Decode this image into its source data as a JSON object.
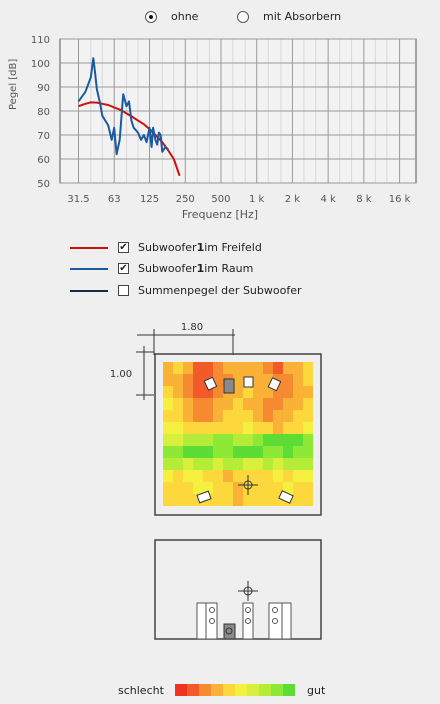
{
  "mode": {
    "options": [
      {
        "label": "ohne",
        "selected": true
      },
      {
        "label": "mit Absorbern",
        "selected": false
      }
    ]
  },
  "chart_data": {
    "type": "line",
    "ylabel": "Pegel [dB]",
    "xlabel": "Frequenz [Hz]",
    "x_ticks": [
      "31.5",
      "63",
      "125",
      "250",
      "500",
      "1 k",
      "2 k",
      "4 k",
      "8 k",
      "16 k"
    ],
    "y_ticks": [
      "110",
      "100",
      "90",
      "80",
      "70",
      "60",
      "50"
    ],
    "ylim": [
      50,
      110
    ],
    "xlim_hz": [
      22,
      22000
    ],
    "x_scale": "log",
    "grid": true,
    "series": [
      {
        "name": "Subwoofer 1 im Freifeld",
        "color": "#cc1111",
        "x": [
          31.5,
          36,
          40,
          45,
          50,
          56,
          63,
          71,
          80,
          90,
          100,
          112,
          125,
          140,
          160,
          180,
          200,
          224
        ],
        "y": [
          82,
          83,
          83.6,
          83.5,
          83,
          82.5,
          81.5,
          80.5,
          79,
          77.5,
          76,
          74.5,
          72.5,
          70,
          67,
          63.5,
          60,
          53
        ]
      },
      {
        "name": "Subwoofer 1 im Raum",
        "color": "#1a5aa0",
        "x": [
          31.5,
          36,
          40,
          42,
          43,
          45,
          48,
          50,
          53,
          56,
          60,
          63,
          66,
          70,
          75,
          80,
          84,
          88,
          92,
          96,
          100,
          106,
          112,
          118,
          125,
          130,
          134,
          140,
          145,
          150,
          155,
          160,
          170,
          180
        ],
        "y": [
          84,
          88,
          94,
          102,
          98,
          89,
          83,
          78,
          76,
          74,
          68,
          73,
          62,
          68,
          87,
          82,
          84,
          76,
          73,
          72,
          71,
          68,
          70,
          67,
          73,
          65,
          73,
          68,
          66,
          71,
          70,
          63,
          65,
          64
        ]
      },
      {
        "name": "Summenpegel der Subwoofer",
        "color": "#1b2a44",
        "x": [],
        "y": []
      }
    ]
  },
  "legend": [
    {
      "label": "Subwoofer ",
      "bold": "1",
      "suffix": " im Freifeld",
      "checked": true,
      "color": "#cc1111",
      "check": "✔"
    },
    {
      "label": "Subwoofer ",
      "bold": "1",
      "suffix": " im Raum",
      "checked": true,
      "color": "#1a5aa0",
      "check": "✔"
    },
    {
      "label": "Summenpegel der Subwoofer",
      "bold": "",
      "suffix": "",
      "checked": false,
      "color": "#1b2a44",
      "check": ""
    }
  ],
  "room": {
    "width_label": "1.80",
    "depth_label": "1.00",
    "heatmap_rows": [
      [
        3,
        4,
        3,
        1,
        1,
        2,
        3,
        3,
        3,
        3,
        2,
        1,
        3,
        3,
        4
      ],
      [
        3,
        3,
        2,
        1,
        1,
        2,
        2,
        3,
        3,
        3,
        3,
        2,
        2,
        3,
        4
      ],
      [
        4,
        3,
        2,
        1,
        1,
        2,
        3,
        3,
        4,
        3,
        3,
        2,
        2,
        3,
        3
      ],
      [
        5,
        4,
        3,
        2,
        2,
        3,
        3,
        4,
        3,
        3,
        2,
        2,
        3,
        3,
        4
      ],
      [
        4,
        4,
        3,
        2,
        2,
        3,
        4,
        4,
        4,
        3,
        2,
        3,
        3,
        4,
        4
      ],
      [
        5,
        5,
        4,
        4,
        4,
        4,
        4,
        4,
        5,
        4,
        4,
        3,
        4,
        4,
        5
      ],
      [
        6,
        6,
        7,
        7,
        7,
        8,
        8,
        7,
        7,
        8,
        9,
        9,
        9,
        9,
        8
      ],
      [
        8,
        8,
        9,
        9,
        9,
        8,
        8,
        9,
        9,
        9,
        8,
        8,
        9,
        8,
        8
      ],
      [
        7,
        7,
        6,
        7,
        7,
        6,
        7,
        7,
        6,
        6,
        7,
        6,
        7,
        7,
        7
      ],
      [
        5,
        4,
        5,
        5,
        4,
        4,
        3,
        4,
        4,
        4,
        4,
        5,
        4,
        5,
        5
      ],
      [
        4,
        4,
        4,
        5,
        5,
        4,
        4,
        3,
        4,
        4,
        4,
        4,
        5,
        4,
        4
      ],
      [
        4,
        4,
        4,
        4,
        4,
        4,
        4,
        3,
        4,
        4,
        4,
        4,
        4,
        4,
        4
      ]
    ]
  },
  "scale": {
    "bad_label": "schlecht",
    "good_label": "gut",
    "colors": [
      "#ee3322",
      "#f25a2a",
      "#f68a30",
      "#f9b236",
      "#fcd83c",
      "#f4f040",
      "#d8f03c",
      "#b4ec38",
      "#8ee836",
      "#5cdc34"
    ]
  }
}
